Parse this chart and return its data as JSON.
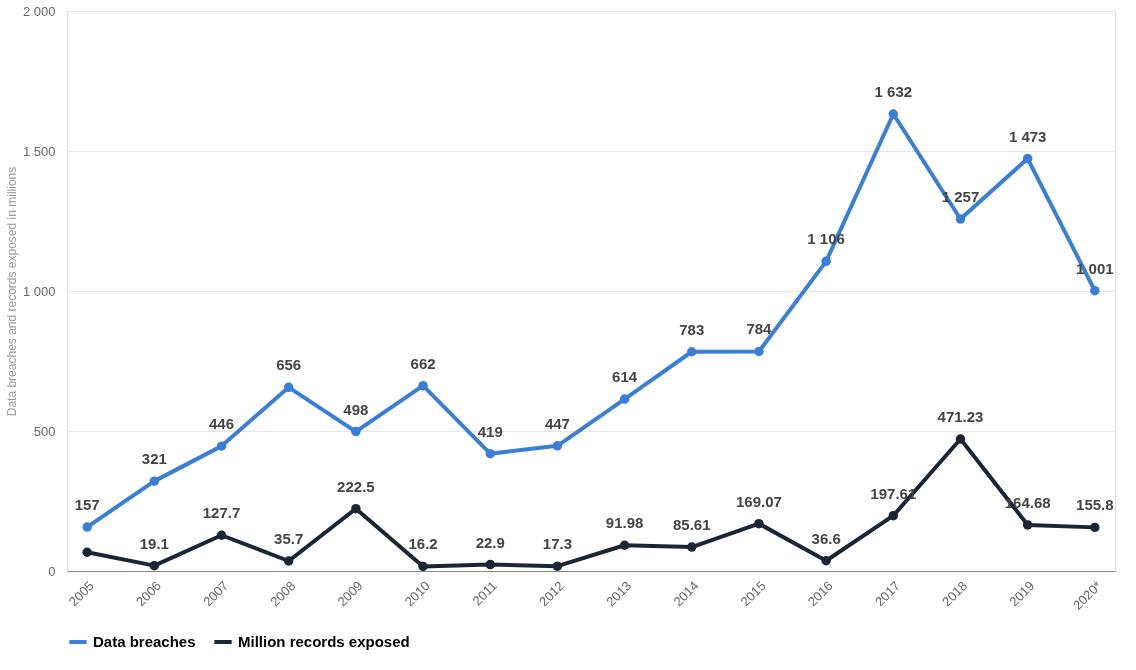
{
  "chart_data": {
    "type": "line",
    "ylabel": "Data breaches and records exposed in millions",
    "categories": [
      "2005",
      "2006",
      "2007",
      "2008",
      "2009",
      "2010",
      "2011",
      "2012",
      "2013",
      "2014",
      "2015",
      "2016",
      "2017",
      "2018",
      "2019",
      "2020*"
    ],
    "ylim": [
      0,
      2000
    ],
    "yticks": [
      0,
      500,
      {
        "value": 1000,
        "label": "1 000"
      },
      {
        "value": 1500,
        "label": "1 500"
      },
      {
        "value": 2000,
        "label": "2 000"
      }
    ],
    "grid": "y",
    "legend": "bottom",
    "marker": "circle",
    "line_style": "solid",
    "series": [
      {
        "name": "Data breaches",
        "color": "#3a7fd5",
        "values": [
          157,
          321,
          446,
          656,
          498,
          662,
          419,
          447,
          614,
          783,
          784,
          1106,
          1632,
          1257,
          1473,
          1001
        ],
        "value_labels": [
          "157",
          "321",
          "446",
          "656",
          "498",
          "662",
          "419",
          "447",
          "614",
          "783",
          "784",
          "1 106",
          "1 632",
          "1 257",
          "1 473",
          "1 001"
        ]
      },
      {
        "name": "Million records exposed",
        "color": "#1b2535",
        "values": [
          67,
          19.1,
          127.7,
          35.7,
          222.5,
          16.2,
          22.9,
          17.3,
          91.98,
          85.61,
          169.07,
          36.6,
          197.61,
          471.23,
          164.68,
          155.8
        ],
        "value_labels": [
          null,
          "19.1",
          "127.7",
          "35.7",
          "222.5",
          "16.2",
          "22.9",
          "17.3",
          "91.98",
          "85.61",
          "169.07",
          "36.6",
          "197.61",
          "471.23",
          "164.68",
          "155.8"
        ]
      }
    ]
  }
}
